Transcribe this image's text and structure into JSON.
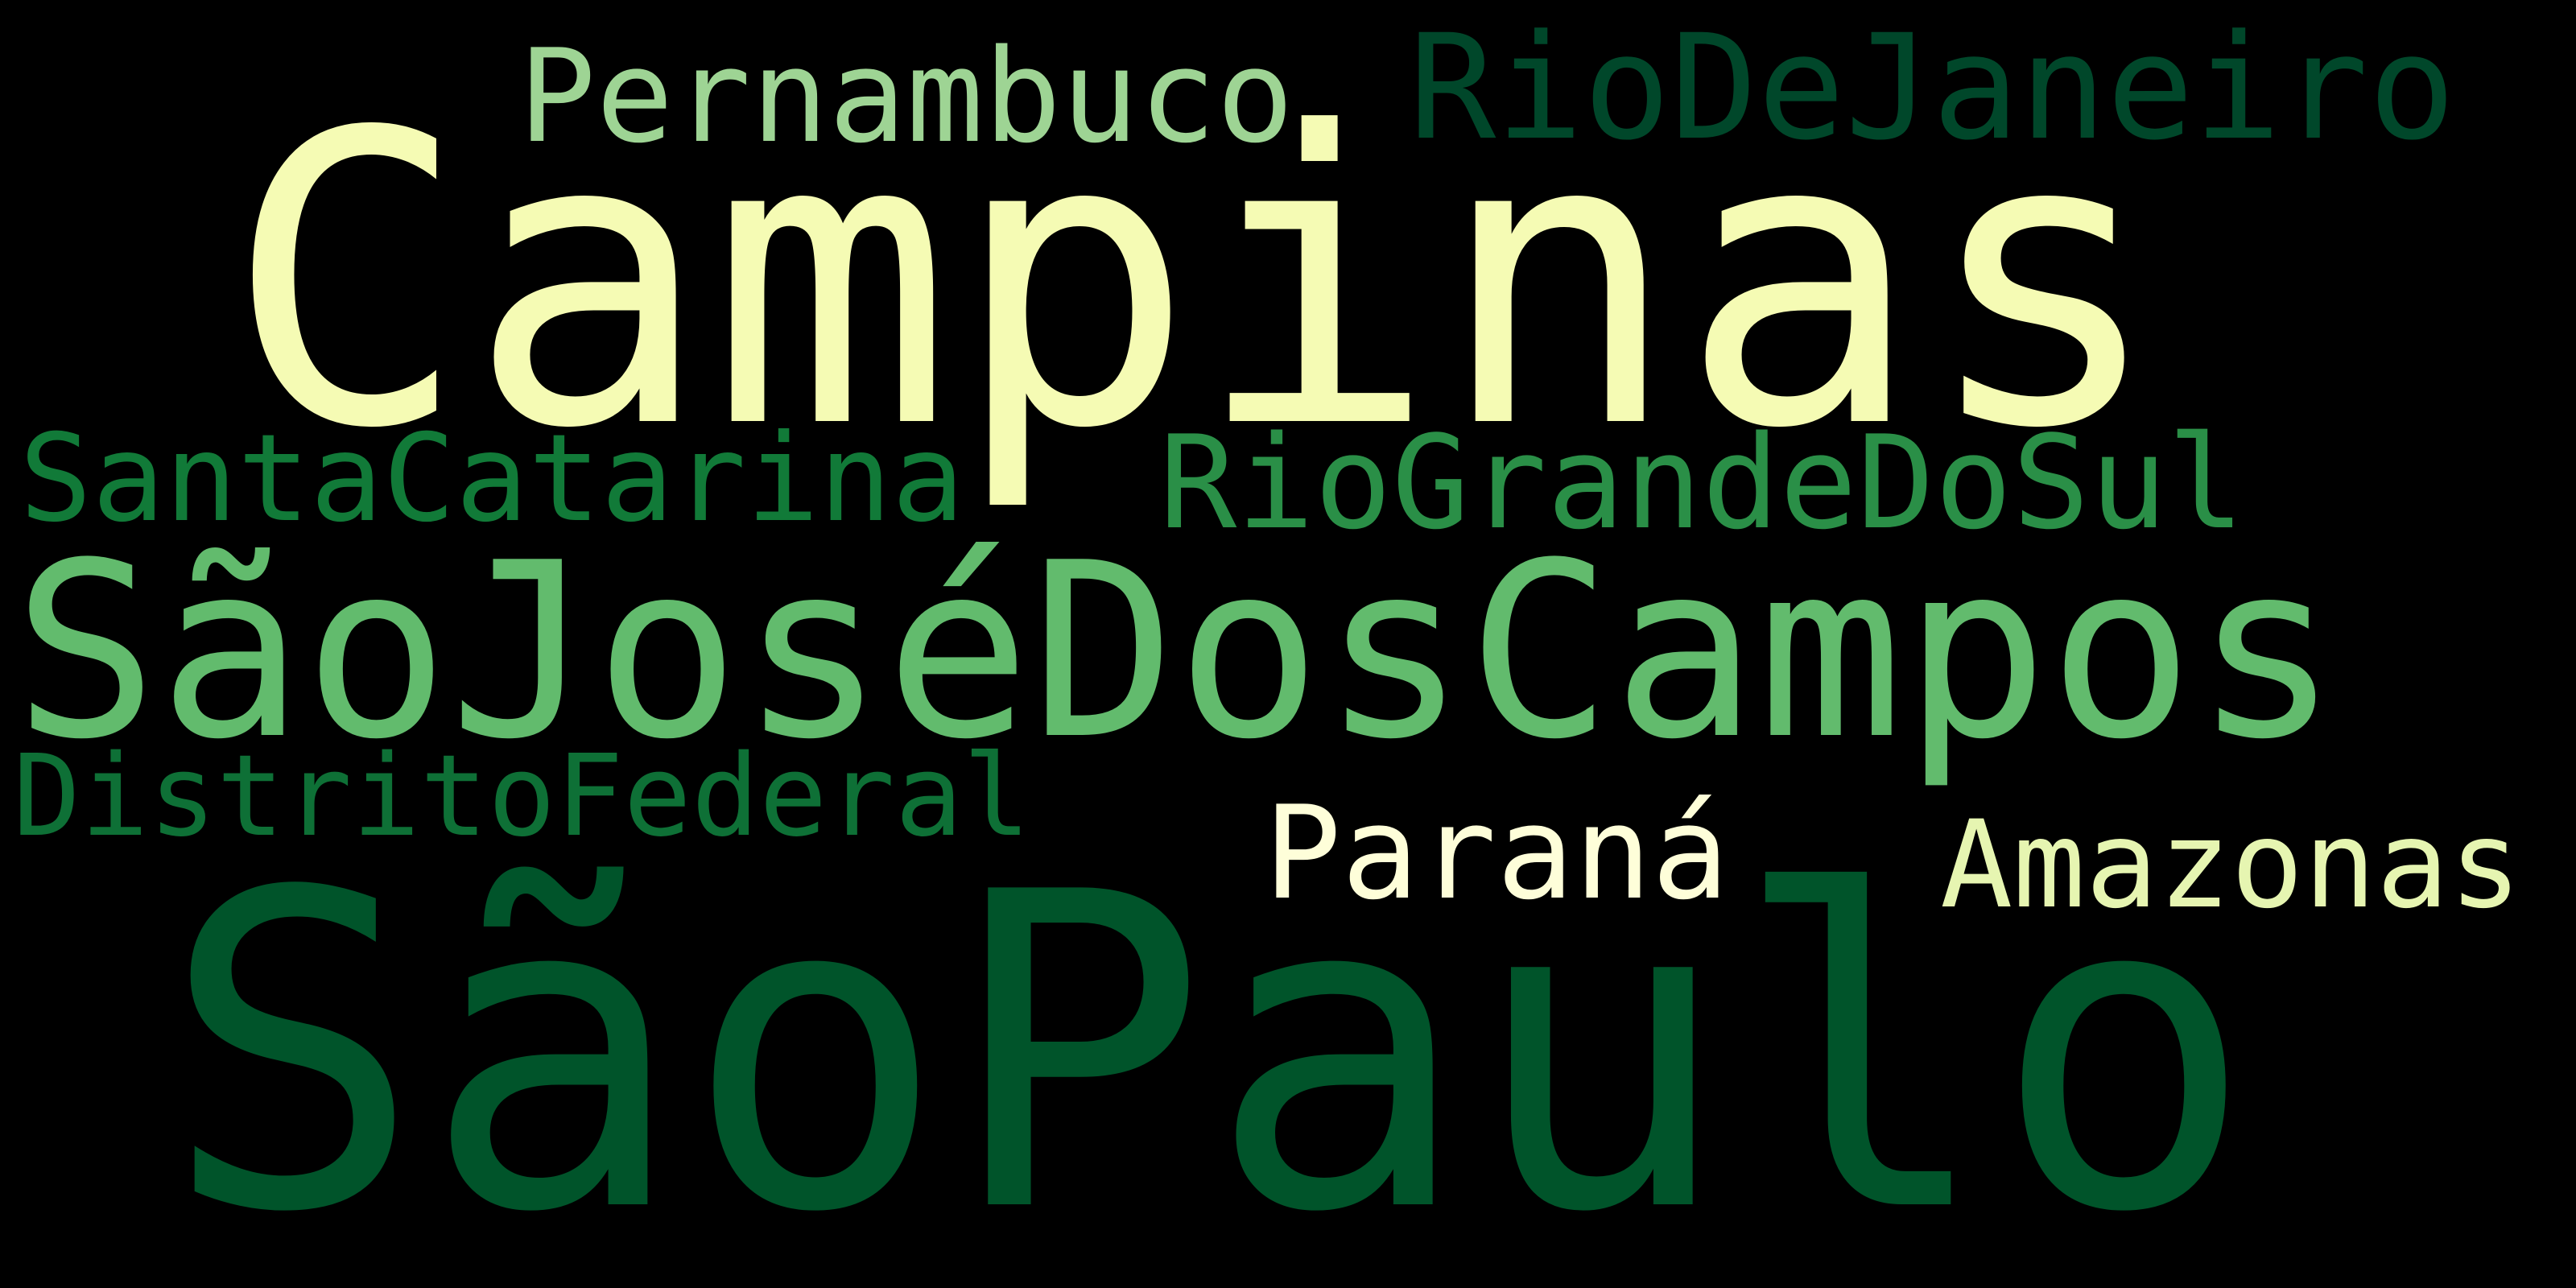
{
  "words": [
    {
      "text": "Campinas",
      "color": "#f5fbb4"
    },
    {
      "text": "SãoPaulo",
      "color": "#00542a"
    },
    {
      "text": "SãoJoséDosCampos",
      "color": "#62bb6d"
    },
    {
      "text": "Pernambuco",
      "color": "#9ed494"
    },
    {
      "text": "RioDeJaneiro",
      "color": "#00472a"
    },
    {
      "text": "SantaCatarina",
      "color": "#117a38"
    },
    {
      "text": "RioGrandeDoSul",
      "color": "#2a8f47"
    },
    {
      "text": "DistritoFederal",
      "color": "#0e7036"
    },
    {
      "text": "Paraná",
      "color": "#fefed9"
    },
    {
      "text": "Amazonas",
      "color": "#e6f5b1"
    }
  ]
}
